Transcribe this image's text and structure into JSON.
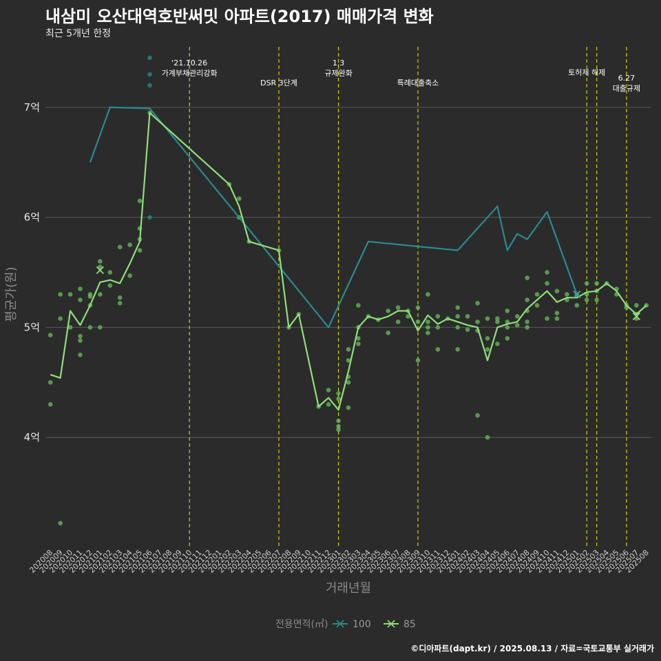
{
  "title": "내삼미 오산대역호반써밋 아파트(2017) 매매가격 변화",
  "subtitle": "최근 5개년 한정",
  "footer": "©디아파트(dapt.kr) / 2025.08.13 / 자료=국토교통부 실거래가",
  "chart_data": {
    "type": "line",
    "xlabel": "거래년월",
    "ylabel": "평균가(원)",
    "x": [
      "202008",
      "202009",
      "202010",
      "202011",
      "202012",
      "202101",
      "202102",
      "202103",
      "202104",
      "202105",
      "202106",
      "202107",
      "202108",
      "202109",
      "202110",
      "202111",
      "202112",
      "202201",
      "202202",
      "202203",
      "202204",
      "202205",
      "202206",
      "202207",
      "202208",
      "202209",
      "202210",
      "202211",
      "202212",
      "202301",
      "202302",
      "202303",
      "202304",
      "202305",
      "202306",
      "202307",
      "202308",
      "202309",
      "202310",
      "202311",
      "202312",
      "202401",
      "202402",
      "202403",
      "202404",
      "202405",
      "202406",
      "202407",
      "202408",
      "202409",
      "202410",
      "202411",
      "202412",
      "202501",
      "202502",
      "202503",
      "202504",
      "202505",
      "202506",
      "202507",
      "202508"
    ],
    "ylim": [
      3.0,
      7.6
    ],
    "yticks": [
      {
        "v": 4,
        "label": "4억"
      },
      {
        "v": 5,
        "label": "5억"
      },
      {
        "v": 6,
        "label": "6억"
      },
      {
        "v": 7,
        "label": "7억"
      }
    ],
    "grid": true,
    "legend": {
      "title": "전용면적(㎡)",
      "position": "bottom",
      "items": [
        "100",
        "85"
      ]
    },
    "colors": {
      "100": "#2a8c8c",
      "85": "#8fe07a",
      "points85": "#6cbe5c",
      "vline": "#d4d400"
    },
    "series": [
      {
        "name": "100",
        "points": [
          [
            "202012",
            6.5
          ],
          [
            "202102",
            7.0
          ],
          [
            "202106",
            6.99
          ],
          [
            "202203",
            6.0
          ],
          [
            "202212",
            5.0
          ],
          [
            "202304",
            5.78
          ],
          [
            "202401",
            5.7
          ],
          [
            "202405",
            6.1
          ],
          [
            "202406",
            5.7
          ],
          [
            "202407",
            5.85
          ],
          [
            "202408",
            5.8
          ],
          [
            "202410",
            6.05
          ],
          [
            "202501",
            5.3
          ]
        ]
      },
      {
        "name": "85",
        "points": [
          [
            "202008",
            4.57
          ],
          [
            "202009",
            4.54
          ],
          [
            "202010",
            5.15
          ],
          [
            "202011",
            5.02
          ],
          [
            "202012",
            5.2
          ],
          [
            "202101",
            5.41
          ],
          [
            "202102",
            5.43
          ],
          [
            "202103",
            5.4
          ],
          [
            "202104",
            5.58
          ],
          [
            "202105",
            5.78
          ],
          [
            "202106",
            6.95
          ],
          [
            "202202",
            6.3
          ],
          [
            "202203",
            6.1
          ],
          [
            "202204",
            5.78
          ],
          [
            "202207",
            5.7
          ],
          [
            "202208",
            5.0
          ],
          [
            "202209",
            5.12
          ],
          [
            "202211",
            4.28
          ],
          [
            "202212",
            4.36
          ],
          [
            "202301",
            4.25
          ],
          [
            "202302",
            4.6
          ],
          [
            "202303",
            5.0
          ],
          [
            "202304",
            5.1
          ],
          [
            "202305",
            5.07
          ],
          [
            "202306",
            5.1
          ],
          [
            "202307",
            5.15
          ],
          [
            "202308",
            5.15
          ],
          [
            "202309",
            4.97
          ],
          [
            "202310",
            5.11
          ],
          [
            "202311",
            5.03
          ],
          [
            "202312",
            5.08
          ],
          [
            "202401",
            5.05
          ],
          [
            "202402",
            5.02
          ],
          [
            "202403",
            5.0
          ],
          [
            "202404",
            4.7
          ],
          [
            "202405",
            5.0
          ],
          [
            "202406",
            5.03
          ],
          [
            "202407",
            5.05
          ],
          [
            "202408",
            5.17
          ],
          [
            "202409",
            5.25
          ],
          [
            "202410",
            5.33
          ],
          [
            "202411",
            5.23
          ],
          [
            "202412",
            5.27
          ],
          [
            "202501",
            5.27
          ],
          [
            "202502",
            5.32
          ],
          [
            "202503",
            5.33
          ],
          [
            "202504",
            5.4
          ],
          [
            "202505",
            5.33
          ],
          [
            "202506",
            5.2
          ],
          [
            "202507",
            5.12
          ],
          [
            "202508",
            5.2
          ]
        ]
      }
    ],
    "scatter": [
      {
        "series": "100",
        "x": "202106",
        "y": 7.45
      },
      {
        "series": "100",
        "x": "202106",
        "y": 7.3
      },
      {
        "series": "100",
        "x": "202106",
        "y": 7.2
      },
      {
        "series": "100",
        "x": "202106",
        "y": 6.0
      },
      {
        "series": "85",
        "x": "202008",
        "y": 4.93
      },
      {
        "series": "85",
        "x": "202008",
        "y": 4.5
      },
      {
        "series": "85",
        "x": "202008",
        "y": 4.3
      },
      {
        "series": "85",
        "x": "202009",
        "y": 5.3
      },
      {
        "series": "85",
        "x": "202009",
        "y": 5.08
      },
      {
        "series": "85",
        "x": "202009",
        "y": 3.22
      },
      {
        "series": "85",
        "x": "202010",
        "y": 5.3
      },
      {
        "series": "85",
        "x": "202010",
        "y": 5.0
      },
      {
        "series": "85",
        "x": "202011",
        "y": 5.35
      },
      {
        "series": "85",
        "x": "202011",
        "y": 5.25
      },
      {
        "series": "85",
        "x": "202011",
        "y": 4.92
      },
      {
        "series": "85",
        "x": "202011",
        "y": 4.88
      },
      {
        "series": "85",
        "x": "202011",
        "y": 4.75
      },
      {
        "series": "85",
        "x": "202012",
        "y": 5.3
      },
      {
        "series": "85",
        "x": "202012",
        "y": 5.28
      },
      {
        "series": "85",
        "x": "202012",
        "y": 5.2
      },
      {
        "series": "85",
        "x": "202012",
        "y": 5.0
      },
      {
        "series": "85",
        "x": "202101",
        "y": 5.6
      },
      {
        "series": "85",
        "x": "202101",
        "y": 5.55
      },
      {
        "series": "85",
        "x": "202101",
        "y": 5.3
      },
      {
        "series": "85",
        "x": "202101",
        "y": 5.0
      },
      {
        "series": "85",
        "x": "202102",
        "y": 5.5
      },
      {
        "series": "85",
        "x": "202102",
        "y": 5.38
      },
      {
        "series": "85",
        "x": "202103",
        "y": 5.73
      },
      {
        "series": "85",
        "x": "202103",
        "y": 5.27
      },
      {
        "series": "85",
        "x": "202103",
        "y": 5.22
      },
      {
        "series": "85",
        "x": "202104",
        "y": 5.75
      },
      {
        "series": "85",
        "x": "202104",
        "y": 5.47
      },
      {
        "series": "85",
        "x": "202105",
        "y": 6.15
      },
      {
        "series": "85",
        "x": "202105",
        "y": 5.9
      },
      {
        "series": "85",
        "x": "202105",
        "y": 5.8
      },
      {
        "series": "85",
        "x": "202105",
        "y": 5.7
      },
      {
        "series": "85",
        "x": "202106",
        "y": 6.95
      },
      {
        "series": "85",
        "x": "202202",
        "y": 6.3
      },
      {
        "series": "85",
        "x": "202203",
        "y": 6.17
      },
      {
        "series": "85",
        "x": "202203",
        "y": 6.0
      },
      {
        "series": "85",
        "x": "202204",
        "y": 5.78
      },
      {
        "series": "85",
        "x": "202207",
        "y": 5.7
      },
      {
        "series": "85",
        "x": "202208",
        "y": 5.0
      },
      {
        "series": "85",
        "x": "202209",
        "y": 5.12
      },
      {
        "series": "85",
        "x": "202211",
        "y": 4.28
      },
      {
        "series": "85",
        "x": "202212",
        "y": 4.43
      },
      {
        "series": "85",
        "x": "202212",
        "y": 4.3
      },
      {
        "series": "85",
        "x": "202301",
        "y": 4.4
      },
      {
        "series": "85",
        "x": "202301",
        "y": 4.35
      },
      {
        "series": "85",
        "x": "202301",
        "y": 4.15
      },
      {
        "series": "85",
        "x": "202301",
        "y": 4.1
      },
      {
        "series": "85",
        "x": "202301",
        "y": 4.07
      },
      {
        "series": "85",
        "x": "202302",
        "y": 4.8
      },
      {
        "series": "85",
        "x": "202302",
        "y": 4.7
      },
      {
        "series": "85",
        "x": "202302",
        "y": 4.55
      },
      {
        "series": "85",
        "x": "202302",
        "y": 4.5
      },
      {
        "series": "85",
        "x": "202302",
        "y": 4.27
      },
      {
        "series": "85",
        "x": "202303",
        "y": 5.2
      },
      {
        "series": "85",
        "x": "202303",
        "y": 5.0
      },
      {
        "series": "85",
        "x": "202303",
        "y": 4.9
      },
      {
        "series": "85",
        "x": "202303",
        "y": 4.85
      },
      {
        "series": "85",
        "x": "202304",
        "y": 5.1
      },
      {
        "series": "85",
        "x": "202305",
        "y": 5.07
      },
      {
        "series": "85",
        "x": "202306",
        "y": 5.15
      },
      {
        "series": "85",
        "x": "202306",
        "y": 4.95
      },
      {
        "series": "85",
        "x": "202307",
        "y": 5.18
      },
      {
        "series": "85",
        "x": "202307",
        "y": 5.05
      },
      {
        "series": "85",
        "x": "202308",
        "y": 5.15
      },
      {
        "series": "85",
        "x": "202308",
        "y": 5.1
      },
      {
        "series": "85",
        "x": "202309",
        "y": 5.18
      },
      {
        "series": "85",
        "x": "202309",
        "y": 5.05
      },
      {
        "series": "85",
        "x": "202309",
        "y": 4.7
      },
      {
        "series": "85",
        "x": "202310",
        "y": 5.3
      },
      {
        "series": "85",
        "x": "202310",
        "y": 5.05
      },
      {
        "series": "85",
        "x": "202310",
        "y": 5.0
      },
      {
        "series": "85",
        "x": "202310",
        "y": 4.95
      },
      {
        "series": "85",
        "x": "202311",
        "y": 5.1
      },
      {
        "series": "85",
        "x": "202311",
        "y": 5.0
      },
      {
        "series": "85",
        "x": "202311",
        "y": 4.8
      },
      {
        "series": "85",
        "x": "202312",
        "y": 5.08
      },
      {
        "series": "85",
        "x": "202401",
        "y": 5.18
      },
      {
        "series": "85",
        "x": "202401",
        "y": 5.1
      },
      {
        "series": "85",
        "x": "202401",
        "y": 5.0
      },
      {
        "series": "85",
        "x": "202401",
        "y": 4.8
      },
      {
        "series": "85",
        "x": "202402",
        "y": 5.1
      },
      {
        "series": "85",
        "x": "202402",
        "y": 4.98
      },
      {
        "series": "85",
        "x": "202403",
        "y": 5.22
      },
      {
        "series": "85",
        "x": "202403",
        "y": 5.05
      },
      {
        "series": "85",
        "x": "202403",
        "y": 4.97
      },
      {
        "series": "85",
        "x": "202403",
        "y": 4.2
      },
      {
        "series": "85",
        "x": "202404",
        "y": 5.08
      },
      {
        "series": "85",
        "x": "202404",
        "y": 4.9
      },
      {
        "series": "85",
        "x": "202404",
        "y": 4.8
      },
      {
        "series": "85",
        "x": "202404",
        "y": 4.0
      },
      {
        "series": "85",
        "x": "202405",
        "y": 5.08
      },
      {
        "series": "85",
        "x": "202405",
        "y": 5.05
      },
      {
        "series": "85",
        "x": "202405",
        "y": 4.85
      },
      {
        "series": "85",
        "x": "202406",
        "y": 5.15
      },
      {
        "series": "85",
        "x": "202406",
        "y": 5.05
      },
      {
        "series": "85",
        "x": "202406",
        "y": 5.0
      },
      {
        "series": "85",
        "x": "202406",
        "y": 4.9
      },
      {
        "series": "85",
        "x": "202407",
        "y": 5.1
      },
      {
        "series": "85",
        "x": "202407",
        "y": 5.02
      },
      {
        "series": "85",
        "x": "202408",
        "y": 5.45
      },
      {
        "series": "85",
        "x": "202408",
        "y": 5.25
      },
      {
        "series": "85",
        "x": "202408",
        "y": 5.15
      },
      {
        "series": "85",
        "x": "202408",
        "y": 5.05
      },
      {
        "series": "85",
        "x": "202408",
        "y": 5.0
      },
      {
        "series": "85",
        "x": "202409",
        "y": 5.3
      },
      {
        "series": "85",
        "x": "202409",
        "y": 5.2
      },
      {
        "series": "85",
        "x": "202410",
        "y": 5.5
      },
      {
        "series": "85",
        "x": "202410",
        "y": 5.4
      },
      {
        "series": "85",
        "x": "202410",
        "y": 5.08
      },
      {
        "series": "85",
        "x": "202411",
        "y": 5.33
      },
      {
        "series": "85",
        "x": "202411",
        "y": 5.13
      },
      {
        "series": "85",
        "x": "202411",
        "y": 5.08
      },
      {
        "series": "85",
        "x": "202412",
        "y": 5.3
      },
      {
        "series": "85",
        "x": "202412",
        "y": 5.25
      },
      {
        "series": "85",
        "x": "202501",
        "y": 5.3
      },
      {
        "series": "85",
        "x": "202501",
        "y": 5.2
      },
      {
        "series": "85",
        "x": "202502",
        "y": 5.4
      },
      {
        "series": "85",
        "x": "202502",
        "y": 5.3
      },
      {
        "series": "85",
        "x": "202502",
        "y": 5.25
      },
      {
        "series": "85",
        "x": "202503",
        "y": 5.4
      },
      {
        "series": "85",
        "x": "202503",
        "y": 5.33
      },
      {
        "series": "85",
        "x": "202503",
        "y": 5.25
      },
      {
        "series": "85",
        "x": "202504",
        "y": 5.4
      },
      {
        "series": "85",
        "x": "202505",
        "y": 5.35
      },
      {
        "series": "85",
        "x": "202505",
        "y": 5.3
      },
      {
        "series": "85",
        "x": "202506",
        "y": 5.2
      },
      {
        "series": "85",
        "x": "202506",
        "y": 5.18
      },
      {
        "series": "85",
        "x": "202507",
        "y": 5.2
      },
      {
        "series": "85",
        "x": "202507",
        "y": 5.12
      },
      {
        "series": "85",
        "x": "202507",
        "y": 5.08
      },
      {
        "series": "85",
        "x": "202508",
        "y": 5.2
      }
    ],
    "cross_markers": [
      {
        "series": "85",
        "x": "202101",
        "y": 5.52
      },
      {
        "series": "100",
        "x": "202501",
        "y": 5.3
      },
      {
        "series": "85",
        "x": "202507",
        "y": 5.1
      }
    ],
    "annotations": [
      {
        "x": "202110",
        "lines": [
          "'21.10.26",
          "가계부채관리강화"
        ],
        "level": 0
      },
      {
        "x": "202207",
        "lines": [
          "DSR 3단계"
        ],
        "level": 2
      },
      {
        "x": "202301",
        "lines": [
          "1.3",
          "규제완화"
        ],
        "level": 0
      },
      {
        "x": "202309",
        "lines": [
          "특례대출축소"
        ],
        "level": 2
      },
      {
        "x": "202502",
        "lines": [
          "토허제 해제"
        ],
        "level": 1
      },
      {
        "x": "202503",
        "lines": [],
        "level": 1
      },
      {
        "x": "202506",
        "lines": [
          "6.27",
          "대출규제"
        ],
        "level": 3
      }
    ]
  }
}
